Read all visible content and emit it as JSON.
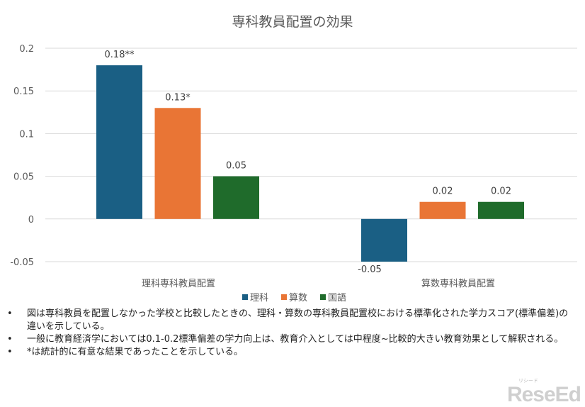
{
  "chart_data": {
    "type": "bar",
    "title": "専科教員配置の効果",
    "categories": [
      "理科専科教員配置",
      "算数専科教員配置"
    ],
    "series": [
      {
        "name": "理科",
        "color": "#1a5f84",
        "values": [
          0.18,
          -0.05
        ],
        "labels": [
          "0.18**",
          "-0.05"
        ]
      },
      {
        "name": "算数",
        "color": "#e97535",
        "values": [
          0.13,
          0.02
        ],
        "labels": [
          "0.13*",
          "0.02"
        ]
      },
      {
        "name": "国語",
        "color": "#1f6b2b",
        "values": [
          0.05,
          0.02
        ],
        "labels": [
          "0.05",
          "0.02"
        ]
      }
    ],
    "ylim": [
      -0.05,
      0.2
    ],
    "yticks": [
      "0.2",
      "0.15",
      "0.1",
      "0.05",
      "0",
      "-0.05"
    ],
    "ytick_values": [
      0.2,
      0.15,
      0.1,
      0.05,
      0,
      -0.05
    ],
    "grid": true,
    "legend": "bottom",
    "xlabel": "",
    "ylabel": ""
  },
  "notes": [
    "図は専科教員を配置しなかった学校と比較したときの、理科・算数の専科教員配置校における標準化された学力スコア(標準偏差)の違いを示している。",
    "一般に教育経済学においては0.1-0.2標準偏差の学力向上は、教育介入としては中程度~比較的大きい教育効果として解釈される。",
    "*は統計的に有意な結果であったことを示している。"
  ],
  "bullet": "•",
  "logo": {
    "text": "ReseEd",
    "ruby": "リシード"
  }
}
